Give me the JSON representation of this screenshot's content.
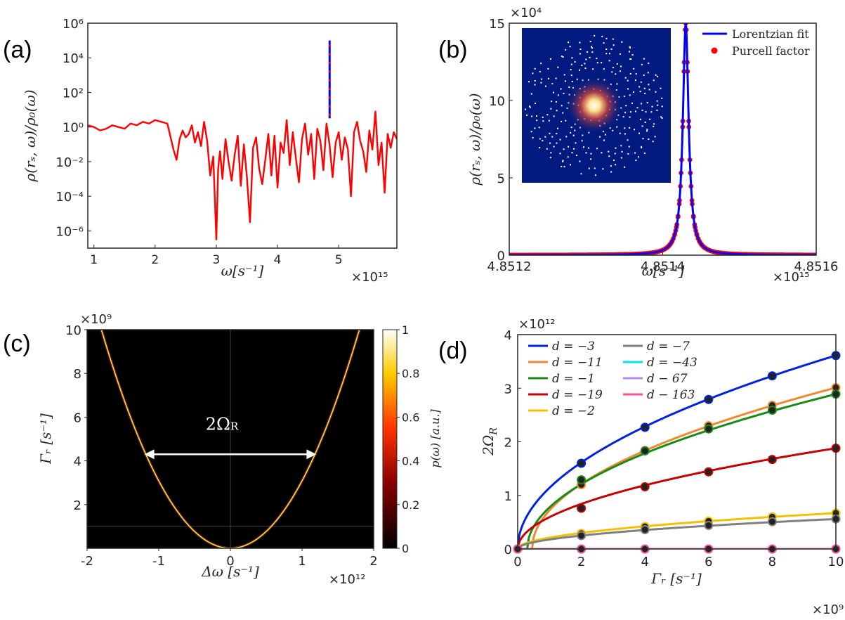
{
  "figure": {
    "panel_labels": [
      "(a)",
      "(b)",
      "(c)",
      "(d)"
    ]
  },
  "chart_data": [
    {
      "panel": "a",
      "type": "line",
      "yscale": "log",
      "xlabel": "ω[s⁻¹]",
      "ylabel": "ρ(rₛ, ω)/ρ₀(ω)",
      "x_multiplier": "×10¹⁵",
      "xlim": [
        0.9,
        5.95
      ],
      "ylim_exp": [
        -7,
        6
      ],
      "x_ticks": [
        "1",
        "2",
        "3",
        "4",
        "5"
      ],
      "y_ticks": [
        {
          "exp": 6,
          "label": "10⁶"
        },
        {
          "exp": 4,
          "label": "10⁴"
        },
        {
          "exp": 2,
          "label": "10²"
        },
        {
          "exp": 0,
          "label": "10⁰"
        },
        {
          "exp": -2,
          "label": "10⁻²"
        },
        {
          "exp": -4,
          "label": "10⁻⁴"
        },
        {
          "exp": -6,
          "label": "10⁻⁶"
        }
      ],
      "series_color": "#ff0000",
      "peak_color": "#0000ff",
      "peak": {
        "x": 4.8514,
        "log_y_top": 5.0
      },
      "log_y_values_x": [
        0.9,
        1.0,
        1.1,
        1.2,
        1.3,
        1.4,
        1.5,
        1.6,
        1.7,
        1.8,
        1.9,
        2.0,
        2.1,
        2.2,
        2.3,
        2.35,
        2.4,
        2.45,
        2.5,
        2.55,
        2.6,
        2.65,
        2.7,
        2.75,
        2.8,
        2.85,
        2.9,
        2.95,
        3.0,
        3.03,
        3.06,
        3.1,
        3.15,
        3.2,
        3.25,
        3.3,
        3.35,
        3.4,
        3.45,
        3.5,
        3.55,
        3.6,
        3.65,
        3.7,
        3.75,
        3.8,
        3.85,
        3.9,
        3.95,
        4.0,
        4.05,
        4.1,
        4.15,
        4.2,
        4.25,
        4.3,
        4.35,
        4.4,
        4.45,
        4.5,
        4.55,
        4.6,
        4.65,
        4.7,
        4.75,
        4.8,
        4.85,
        4.9,
        4.95,
        5.0,
        5.05,
        5.1,
        5.15,
        5.2,
        5.25,
        5.3,
        5.35,
        5.4,
        5.45,
        5.5,
        5.55,
        5.6,
        5.65,
        5.7,
        5.75,
        5.8,
        5.85,
        5.9,
        5.95
      ],
      "log_y_values": [
        0.1,
        0.0,
        -0.2,
        -0.1,
        0.1,
        0.0,
        -0.1,
        0.2,
        0.1,
        0.3,
        0.2,
        0.4,
        0.3,
        0.2,
        -1.3,
        -1.9,
        -0.7,
        -0.2,
        -0.6,
        -0.4,
        0.1,
        -0.9,
        -0.3,
        -1.1,
        0.3,
        -0.8,
        -2.8,
        -1.7,
        -6.5,
        -2.4,
        -1.4,
        -3.0,
        -0.7,
        -2.0,
        -3.1,
        -1.6,
        -0.5,
        -3.4,
        -1.0,
        -2.9,
        -5.5,
        -1.2,
        -0.6,
        -2.4,
        -3.3,
        -1.9,
        -0.4,
        -2.8,
        -0.5,
        -3.5,
        -0.9,
        -1.5,
        0.4,
        -2.2,
        -0.3,
        -1.8,
        -3.2,
        -0.7,
        0.2,
        -1.6,
        -0.4,
        -3.0,
        -0.1,
        -0.8,
        -2.5,
        0.2,
        -1.0,
        -2.9,
        -0.9,
        -0.3,
        -1.9,
        -0.6,
        -1.3,
        -4.0,
        -0.3,
        0.3,
        -0.8,
        -1.4,
        -2.6,
        -0.2,
        -1.3,
        0.9,
        -2.2,
        -0.9,
        -3.8,
        -0.4,
        -1.2,
        -0.3,
        -0.7
      ]
    },
    {
      "panel": "b",
      "type": "line",
      "xlabel": "ω[s⁻¹]",
      "ylabel": "ρ(rₛ, ω)/ρ₀(ω)",
      "x_multiplier": "×10¹⁵",
      "y_multiplier": "×10⁴",
      "xlim": [
        4.8512,
        4.8516
      ],
      "ylim": [
        0,
        15
      ],
      "x_ticks": [
        "4.8512",
        "4.8514",
        "4.8516"
      ],
      "y_ticks": [
        "0",
        "5",
        "10",
        "15"
      ],
      "center": 4.85143,
      "gamma": 4.5e-06,
      "peak": 15,
      "legend": [
        {
          "label": "Lorentzian fit",
          "color": "#0000ff",
          "style": "line"
        },
        {
          "label": "Purcell factor",
          "color": "#ff0000",
          "style": "dot"
        }
      ],
      "legend_position": "top-right",
      "inset": {
        "background": "#001a80",
        "description_points": "white dots with central bright spot"
      }
    },
    {
      "panel": "c",
      "type": "heatmap",
      "xlabel": "Δω  [s⁻¹]",
      "ylabel": "Γᵣ  [s⁻¹]",
      "x_multiplier": "×10¹²",
      "y_multiplier": "×10⁹",
      "xlim": [
        -2,
        2
      ],
      "ylim": [
        0,
        10
      ],
      "x_ticks": [
        "-2",
        "-1",
        "0",
        "1",
        "2"
      ],
      "y_ticks": [
        "2",
        "4",
        "6",
        "8",
        "10"
      ],
      "colorbar_label": "p(ω)  [a.u.]",
      "colorbar_ticks": [
        "0",
        "0.2",
        "0.4",
        "0.6",
        "0.8",
        "1"
      ],
      "annotation": "2Ω",
      "annotation_sub": "R",
      "annotation_span": [
        -1.2,
        1.2
      ],
      "annotation_y": 4.3,
      "curve_x_at_gamma10": 1.8
    },
    {
      "panel": "d",
      "type": "line",
      "xlabel": "Γᵣ  [s⁻¹]",
      "ylabel": "2Ω",
      "ylabel_sub": "R",
      "x_multiplier": "×10⁹",
      "y_multiplier": "×10¹²",
      "xlim": [
        0,
        10
      ],
      "ylim": [
        0,
        4
      ],
      "x_ticks": [
        "0",
        "2",
        "4",
        "6",
        "8",
        "10"
      ],
      "y_ticks": [
        "0",
        "1",
        "2",
        "3",
        "4"
      ],
      "x_points": [
        0,
        2,
        4,
        6,
        8,
        10
      ],
      "series": [
        {
          "name": "d = −3",
          "color": "#0022dd",
          "values": [
            0,
            1.6,
            2.27,
            2.79,
            3.23,
            3.61
          ]
        },
        {
          "name": "d = −11",
          "color": "#ee8833",
          "values": [
            0,
            1.2,
            1.84,
            2.3,
            2.68,
            3.01
          ]
        },
        {
          "name": "d = −1",
          "color": "#1a8a1a",
          "values": [
            0,
            1.29,
            1.83,
            2.24,
            2.59,
            2.89
          ]
        },
        {
          "name": "d = −19",
          "color": "#c40000",
          "values": [
            0,
            0.76,
            1.16,
            1.44,
            1.67,
            1.88
          ]
        },
        {
          "name": "d = −2",
          "color": "#f2c200",
          "values": [
            0,
            0.29,
            0.42,
            0.52,
            0.6,
            0.67
          ]
        },
        {
          "name": "d = −7",
          "color": "#808080",
          "values": [
            0,
            0.25,
            0.36,
            0.44,
            0.51,
            0.56
          ]
        },
        {
          "name": "d = −43",
          "color": "#00e5ee",
          "values": [
            0,
            0,
            0,
            0,
            0,
            0
          ]
        },
        {
          "name": "d − 67",
          "color": "#bb88ee",
          "values": [
            0,
            0,
            0,
            0,
            0,
            0
          ]
        },
        {
          "name": "d − 163",
          "color": "#ee5599",
          "values": [
            0,
            0,
            0,
            0,
            0,
            0
          ]
        }
      ],
      "legend_position": "top-left"
    }
  ]
}
